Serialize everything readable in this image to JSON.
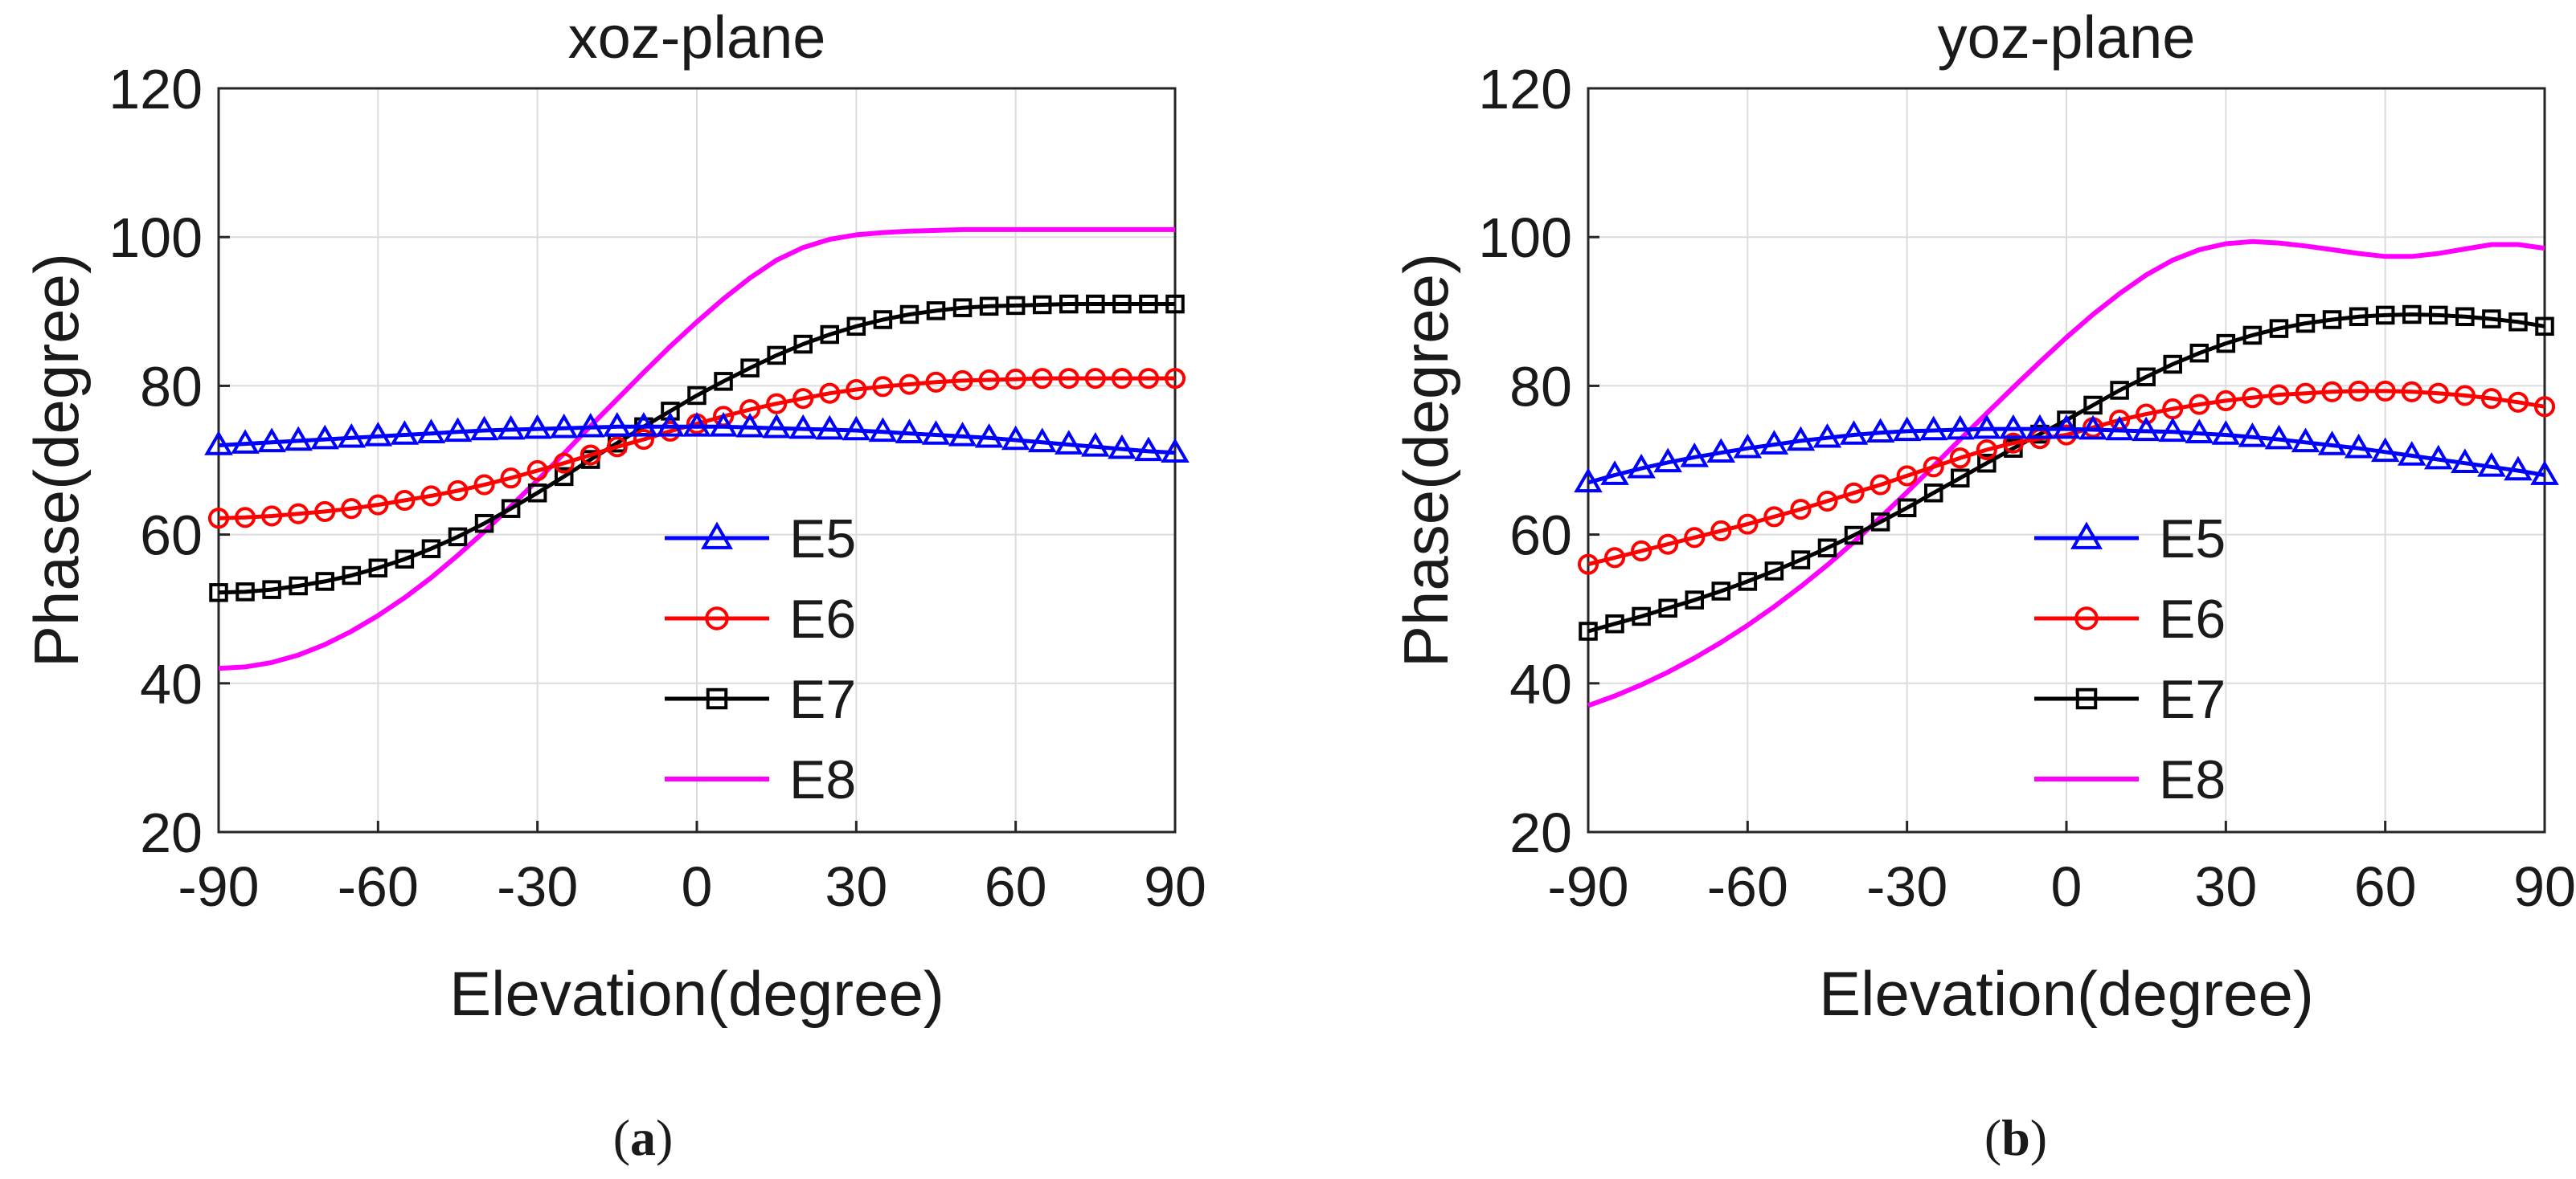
{
  "figure": {
    "panel_labels": [
      {
        "open": "(",
        "letter": "a",
        "close": ")"
      },
      {
        "open": "(",
        "letter": "b",
        "close": ")"
      }
    ]
  },
  "chart_data": [
    {
      "type": "line",
      "title": "xoz-plane",
      "xlabel": "Elevation(degree)",
      "ylabel": "Phase(degree)",
      "xlim": [
        -90,
        90
      ],
      "ylim": [
        20,
        120
      ],
      "xticks": [
        -90,
        -60,
        -30,
        0,
        30,
        60,
        90
      ],
      "yticks": [
        20,
        40,
        60,
        80,
        100,
        120
      ],
      "xtick_labels": [
        "-90",
        "-60",
        "-30",
        "0",
        "30",
        "60",
        "90"
      ],
      "ytick_labels": [
        "20",
        "40",
        "60",
        "80",
        "100",
        "120"
      ],
      "grid": true,
      "legend": "center-bottom",
      "x": [
        -90,
        -85,
        -80,
        -75,
        -70,
        -65,
        -60,
        -55,
        -50,
        -45,
        -40,
        -35,
        -30,
        -25,
        -20,
        -15,
        -10,
        -5,
        0,
        5,
        10,
        15,
        20,
        25,
        30,
        35,
        40,
        45,
        50,
        55,
        60,
        65,
        70,
        75,
        80,
        85,
        90
      ],
      "series": [
        {
          "name": "E5",
          "color": "#0000ff",
          "marker": "triangle",
          "values": [
            72.0,
            72.2,
            72.4,
            72.6,
            72.8,
            73.0,
            73.2,
            73.4,
            73.6,
            73.8,
            74.0,
            74.1,
            74.2,
            74.3,
            74.4,
            74.5,
            74.5,
            74.5,
            74.5,
            74.5,
            74.4,
            74.3,
            74.2,
            74.1,
            74.0,
            73.8,
            73.6,
            73.4,
            73.2,
            73.0,
            72.7,
            72.4,
            72.1,
            71.8,
            71.5,
            71.2,
            71.0
          ]
        },
        {
          "name": "E6",
          "color": "#ff0000",
          "marker": "circle",
          "values": [
            62.2,
            62.3,
            62.5,
            62.8,
            63.1,
            63.5,
            64.0,
            64.6,
            65.2,
            65.9,
            66.7,
            67.6,
            68.6,
            69.6,
            70.7,
            71.8,
            72.8,
            73.9,
            74.9,
            75.9,
            76.8,
            77.6,
            78.3,
            79.0,
            79.5,
            79.9,
            80.2,
            80.5,
            80.7,
            80.8,
            80.9,
            81.0,
            81.0,
            81.0,
            81.0,
            81.0,
            81.0
          ]
        },
        {
          "name": "E7",
          "color": "#000000",
          "marker": "square",
          "values": [
            52.2,
            52.3,
            52.6,
            53.1,
            53.7,
            54.5,
            55.5,
            56.7,
            58.1,
            59.7,
            61.5,
            63.5,
            65.6,
            67.8,
            70.1,
            72.3,
            74.5,
            76.6,
            78.7,
            80.6,
            82.4,
            84.1,
            85.6,
            86.9,
            88.0,
            88.9,
            89.6,
            90.1,
            90.5,
            90.7,
            90.8,
            90.9,
            91.0,
            91.0,
            91.0,
            91.0,
            91.0
          ]
        },
        {
          "name": "E8",
          "color": "#ff00ff",
          "marker": "none",
          "values": [
            42.0,
            42.2,
            42.8,
            43.8,
            45.2,
            47.0,
            49.1,
            51.5,
            54.2,
            57.2,
            60.4,
            63.8,
            67.3,
            70.9,
            74.6,
            78.2,
            81.8,
            85.3,
            88.6,
            91.7,
            94.5,
            96.9,
            98.6,
            99.7,
            100.3,
            100.6,
            100.8,
            100.9,
            101.0,
            101.0,
            101.0,
            101.0,
            101.0,
            101.0,
            101.0,
            101.0,
            101.0
          ]
        }
      ]
    },
    {
      "type": "line",
      "title": "yoz-plane",
      "xlabel": "Elevation(degree)",
      "ylabel": "Phase(degree)",
      "xlim": [
        -90,
        90
      ],
      "ylim": [
        20,
        120
      ],
      "xticks": [
        -90,
        -60,
        -30,
        0,
        30,
        60,
        90
      ],
      "yticks": [
        20,
        40,
        60,
        80,
        100,
        120
      ],
      "xtick_labels": [
        "-90",
        "-60",
        "-30",
        "0",
        "30",
        "60",
        "90"
      ],
      "ytick_labels": [
        "20",
        "40",
        "60",
        "80",
        "100",
        "120"
      ],
      "grid": true,
      "legend": "center-bottom",
      "x": [
        -90,
        -85,
        -80,
        -75,
        -70,
        -65,
        -60,
        -55,
        -50,
        -45,
        -40,
        -35,
        -30,
        -25,
        -20,
        -15,
        -10,
        -5,
        0,
        5,
        10,
        15,
        20,
        25,
        30,
        35,
        40,
        45,
        50,
        55,
        60,
        65,
        70,
        75,
        80,
        85,
        90
      ],
      "series": [
        {
          "name": "E5",
          "color": "#0000ff",
          "marker": "triangle",
          "values": [
            67.0,
            68.0,
            68.9,
            69.7,
            70.4,
            71.0,
            71.6,
            72.1,
            72.6,
            73.0,
            73.4,
            73.7,
            73.9,
            74.0,
            74.1,
            74.2,
            74.2,
            74.2,
            74.2,
            74.1,
            74.0,
            73.9,
            73.8,
            73.6,
            73.4,
            73.1,
            72.8,
            72.4,
            72.0,
            71.6,
            71.1,
            70.6,
            70.1,
            69.6,
            69.1,
            68.6,
            68.0
          ]
        },
        {
          "name": "E6",
          "color": "#ff0000",
          "marker": "circle",
          "values": [
            56.0,
            56.9,
            57.8,
            58.7,
            59.6,
            60.5,
            61.4,
            62.4,
            63.4,
            64.5,
            65.6,
            66.7,
            67.9,
            69.1,
            70.3,
            71.4,
            72.3,
            72.9,
            73.4,
            74.4,
            75.4,
            76.2,
            76.9,
            77.5,
            78.0,
            78.4,
            78.8,
            79.0,
            79.2,
            79.3,
            79.3,
            79.2,
            79.0,
            78.7,
            78.3,
            77.8,
            77.2
          ]
        },
        {
          "name": "E7",
          "color": "#000000",
          "marker": "square",
          "values": [
            47.0,
            48.0,
            49.0,
            50.1,
            51.2,
            52.4,
            53.7,
            55.1,
            56.6,
            58.2,
            59.9,
            61.7,
            63.6,
            65.6,
            67.6,
            69.6,
            71.6,
            73.5,
            75.4,
            77.4,
            79.4,
            81.2,
            82.9,
            84.4,
            85.7,
            86.8,
            87.7,
            88.4,
            88.9,
            89.3,
            89.5,
            89.6,
            89.5,
            89.3,
            89.0,
            88.6,
            88.0
          ]
        },
        {
          "name": "E8",
          "color": "#ff00ff",
          "marker": "none",
          "values": [
            37.0,
            38.3,
            39.8,
            41.5,
            43.4,
            45.5,
            47.8,
            50.3,
            53.0,
            55.9,
            59.0,
            62.3,
            65.7,
            69.2,
            72.8,
            76.3,
            79.8,
            83.2,
            86.5,
            89.6,
            92.4,
            94.9,
            96.9,
            98.3,
            99.1,
            99.4,
            99.2,
            98.8,
            98.3,
            97.8,
            97.4,
            97.4,
            97.8,
            98.4,
            99.0,
            99.0,
            98.5
          ]
        }
      ]
    }
  ]
}
